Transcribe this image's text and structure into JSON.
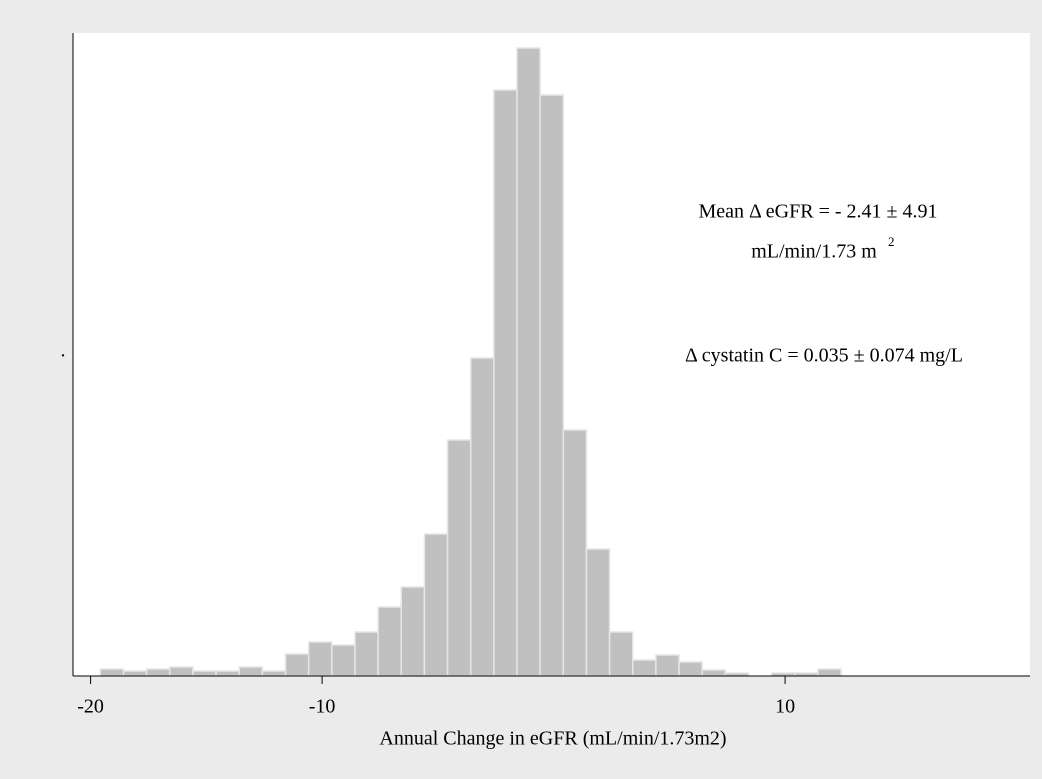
{
  "chart_data": {
    "type": "histogram",
    "x_label": "Annual Change in eGFR (mL/min/1.73m2)",
    "y_label": ".",
    "bins": [
      -19.58,
      -18.58,
      -17.58,
      -16.58,
      -15.58,
      -14.58,
      -13.58,
      -12.58,
      -11.58,
      -10.58,
      -9.58,
      -8.58,
      -7.58,
      -6.58,
      -5.58,
      -4.58,
      -3.58,
      -2.58,
      -1.58,
      -0.58,
      0.42,
      1.42,
      2.42,
      3.42,
      4.42,
      5.42,
      6.42,
      7.42,
      8.42,
      9.42,
      10.42,
      11.42,
      12.42
    ],
    "counts": [
      7,
      5,
      7,
      9,
      5,
      5,
      9,
      5,
      22,
      34,
      31,
      44,
      69,
      89,
      142,
      236,
      318,
      586,
      628,
      581,
      246,
      127,
      44,
      16,
      21,
      14,
      6,
      3,
      0,
      3,
      3,
      7
    ],
    "color": "#c0c0c0",
    "xlim": [
      -20.76,
      20.58
    ],
    "ylim": [
      0,
      643
    ],
    "xticks": [
      -20,
      -10,
      10
    ],
    "annotations": [
      "Mean Δ eGFR = - 2.41 ± 4.91",
      "mL/min/1.73 m",
      "2",
      "Δ cystatin C = 0.035 ± 0.074 mg/L"
    ]
  }
}
